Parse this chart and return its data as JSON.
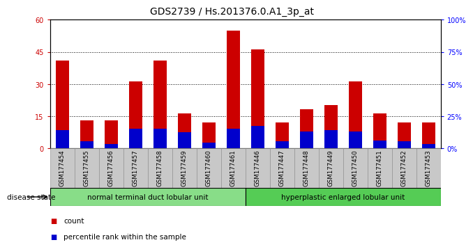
{
  "title": "GDS2739 / Hs.201376.0.A1_3p_at",
  "categories": [
    "GSM177454",
    "GSM177455",
    "GSM177456",
    "GSM177457",
    "GSM177458",
    "GSM177459",
    "GSM177460",
    "GSM177461",
    "GSM177446",
    "GSM177447",
    "GSM177448",
    "GSM177449",
    "GSM177450",
    "GSM177451",
    "GSM177452",
    "GSM177453"
  ],
  "count_values": [
    41,
    13,
    13,
    31,
    41,
    16,
    12,
    55,
    46,
    12,
    18,
    20,
    31,
    16,
    12,
    12
  ],
  "percentile_values": [
    14,
    5,
    3,
    15,
    15,
    12,
    4,
    15,
    17,
    5,
    13,
    14,
    13,
    6,
    5,
    3
  ],
  "count_color": "#cc0000",
  "percentile_color": "#0000cc",
  "bar_width": 0.55,
  "ylim_left": [
    0,
    60
  ],
  "ylim_right": [
    0,
    100
  ],
  "yticks_left": [
    0,
    15,
    30,
    45,
    60
  ],
  "ytick_labels_left": [
    "0",
    "15",
    "30",
    "45",
    "60"
  ],
  "yticks_right": [
    0,
    25,
    50,
    75,
    100
  ],
  "ytick_labels_right": [
    "0%",
    "25%",
    "50%",
    "75%",
    "100%"
  ],
  "group1_label": "normal terminal duct lobular unit",
  "group2_label": "hyperplastic enlarged lobular unit",
  "group1_count": 8,
  "group2_count": 8,
  "disease_state_label": "disease state",
  "legend_count": "count",
  "legend_percentile": "percentile rank within the sample",
  "bg_color": "#ffffff",
  "tick_bg_color": "#c8c8c8",
  "group1_bg_color": "#88dd88",
  "group2_bg_color": "#55cc55",
  "title_fontsize": 10,
  "tick_fontsize": 7,
  "label_fontsize": 8
}
